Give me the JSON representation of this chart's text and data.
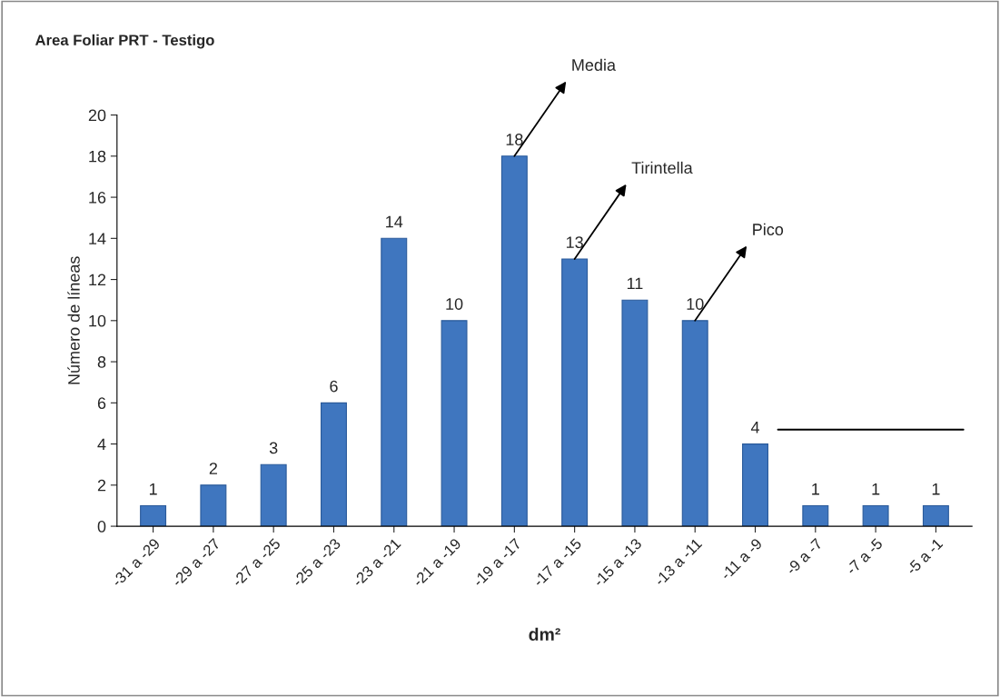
{
  "chart_data": {
    "type": "bar",
    "title": "Area Foliar PRT - Testigo",
    "xlabel": "dm²",
    "ylabel": "Número de líneas",
    "categories": [
      "-31 a -29",
      "-29 a -27",
      "-27 a -25",
      "-25 a -23",
      "-23 a -21",
      "-21 a -19",
      "-19 a -17",
      "-17 a -15",
      "-15 a -13",
      "-13 a -11",
      "-11 a -9",
      "-9 a -7",
      "-7 a -5",
      "-5 a -1"
    ],
    "values": [
      1,
      2,
      3,
      6,
      14,
      10,
      18,
      13,
      11,
      10,
      4,
      1,
      1,
      1
    ],
    "color": "#3f76bf",
    "ylim": [
      0,
      20
    ],
    "yticks": [
      0,
      2,
      4,
      6,
      8,
      10,
      12,
      14,
      16,
      18,
      20
    ],
    "grid": false,
    "data_labels": true,
    "annotations": [
      {
        "text": "Media",
        "x": "-19 a -17",
        "y": 18
      },
      {
        "text": "Tirintella",
        "x": "-17 a -15",
        "y": 13
      },
      {
        "text": "Pico",
        "x": "-13 a -11",
        "y": 10
      }
    ]
  }
}
